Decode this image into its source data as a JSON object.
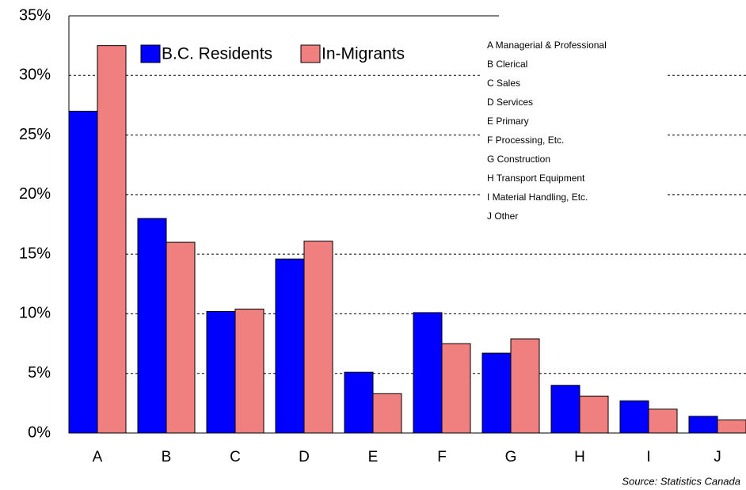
{
  "chart_data": {
    "type": "bar",
    "categories": [
      "A",
      "B",
      "C",
      "D",
      "E",
      "F",
      "G",
      "H",
      "I",
      "J"
    ],
    "series": [
      {
        "name": "B.C. Residents",
        "color": "#0000ff",
        "values": [
          27,
          18,
          10.2,
          14.6,
          5.1,
          10.1,
          6.7,
          4.0,
          2.7,
          1.4
        ]
      },
      {
        "name": "In-Migrants",
        "color": "#f08080",
        "values": [
          32.5,
          16,
          10.4,
          16.1,
          3.3,
          7.5,
          7.9,
          3.1,
          2.0,
          1.1
        ]
      }
    ],
    "ylim": [
      0,
      35
    ],
    "yticks": [
      {
        "value": 0,
        "label": "0%"
      },
      {
        "value": 5,
        "label": "5%"
      },
      {
        "value": 10,
        "label": "10%"
      },
      {
        "value": 15,
        "label": "15%"
      },
      {
        "value": 20,
        "label": "20%"
      },
      {
        "value": 25,
        "label": "25%"
      },
      {
        "value": 30,
        "label": "30%"
      },
      {
        "value": 35,
        "label": "35%"
      }
    ],
    "grid": true,
    "legend": "top-left",
    "annotations": [
      "A Managerial & Professional",
      "B Clerical",
      "C Sales",
      "D Services",
      "E Primary",
      "F Processing, Etc.",
      "G Construction",
      "H Transport Equipment",
      "I  Material Handling, Etc.",
      "J Other"
    ],
    "source": "Source: Statistics Canada"
  }
}
